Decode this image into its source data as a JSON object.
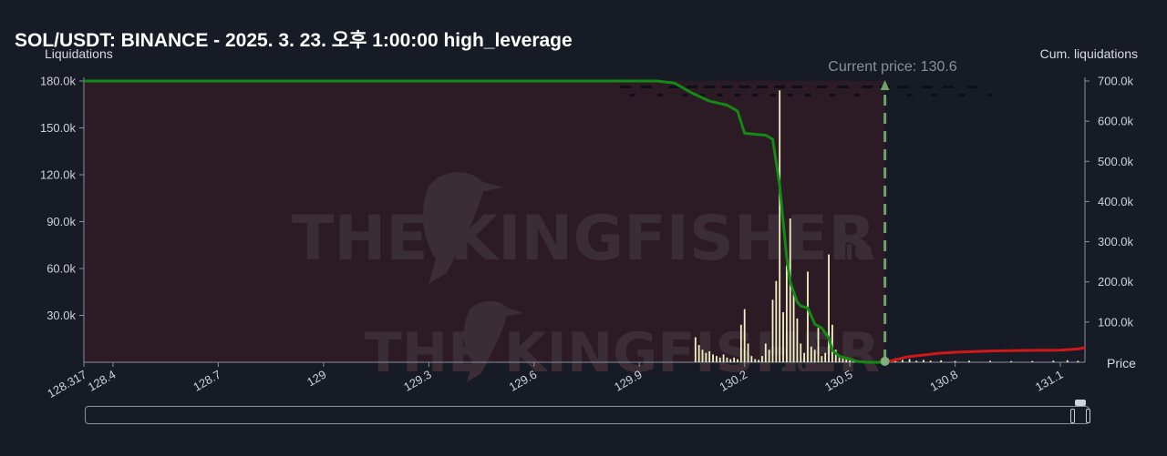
{
  "title": "SOL/USDT: BINANCE - 2025. 3. 23. 오후 1:00:00 high_leverage",
  "labels": {
    "left_axis": "Liquidations",
    "right_axis": "Cum. liquidations",
    "x_axis": "Price",
    "current_price": "Current price: 130.6"
  },
  "watermark": {
    "text_main": "THE KINGFISHER",
    "text_suffix": ".io"
  },
  "colors": {
    "background": "#171b26",
    "short_region": "#2c1a25",
    "cum_short_line": "#138a13",
    "cum_long_line": "#d01818",
    "bars": "#f2f0c4",
    "current_price_marker": "#6fa36a",
    "grid": "#8a8f99"
  },
  "chart_data": {
    "type": "bar",
    "title": "SOL/USDT: BINANCE - 2025. 3. 23. 오후 1:00:00 high_leverage",
    "xlabel": "Price",
    "ylabel": "Liquidations",
    "y2label": "Cum. liquidations",
    "xlim": [
      128.317,
      131.17
    ],
    "ylim": [
      0,
      180000
    ],
    "y2lim": [
      0,
      700000
    ],
    "x_ticks": [
      "128.317",
      "128.4",
      "128.7",
      "129",
      "129.3",
      "129.6",
      "129.9",
      "130.2",
      "130.5",
      "130.8",
      "131.1"
    ],
    "x_tick_values": [
      128.317,
      128.4,
      128.7,
      129.0,
      129.3,
      129.6,
      129.9,
      130.2,
      130.5,
      130.8,
      131.1
    ],
    "y_ticks": [
      "30.0k",
      "60.0k",
      "90.0k",
      "120.0k",
      "150.0k",
      "180.0k"
    ],
    "y_tick_values": [
      30000,
      60000,
      90000,
      120000,
      150000,
      180000
    ],
    "y2_ticks": [
      "100.0k",
      "200.0k",
      "300.0k",
      "400.0k",
      "500.0k",
      "600.0k",
      "700.0k"
    ],
    "y2_tick_values": [
      100000,
      200000,
      300000,
      400000,
      500000,
      600000,
      700000
    ],
    "current_price": 130.6,
    "bars": [
      {
        "x": 130.06,
        "y": 16000
      },
      {
        "x": 130.07,
        "y": 11000
      },
      {
        "x": 130.08,
        "y": 8000
      },
      {
        "x": 130.09,
        "y": 6000
      },
      {
        "x": 130.1,
        "y": 7000
      },
      {
        "x": 130.11,
        "y": 5000
      },
      {
        "x": 130.12,
        "y": 4000
      },
      {
        "x": 130.13,
        "y": 3000
      },
      {
        "x": 130.14,
        "y": 5000
      },
      {
        "x": 130.15,
        "y": 3000
      },
      {
        "x": 130.16,
        "y": 2000
      },
      {
        "x": 130.17,
        "y": 3000
      },
      {
        "x": 130.18,
        "y": 2000
      },
      {
        "x": 130.19,
        "y": 24000
      },
      {
        "x": 130.2,
        "y": 34000
      },
      {
        "x": 130.21,
        "y": 12000
      },
      {
        "x": 130.22,
        "y": 4000
      },
      {
        "x": 130.23,
        "y": 2000
      },
      {
        "x": 130.24,
        "y": 1500
      },
      {
        "x": 130.25,
        "y": 4000
      },
      {
        "x": 130.26,
        "y": 12000
      },
      {
        "x": 130.27,
        "y": 8000
      },
      {
        "x": 130.28,
        "y": 40000
      },
      {
        "x": 130.29,
        "y": 52000
      },
      {
        "x": 130.3,
        "y": 174000
      },
      {
        "x": 130.31,
        "y": 32000
      },
      {
        "x": 130.32,
        "y": 62000
      },
      {
        "x": 130.33,
        "y": 92000
      },
      {
        "x": 130.34,
        "y": 45000
      },
      {
        "x": 130.35,
        "y": 28000
      },
      {
        "x": 130.36,
        "y": 12000
      },
      {
        "x": 130.37,
        "y": 6000
      },
      {
        "x": 130.38,
        "y": 58000
      },
      {
        "x": 130.39,
        "y": 10000
      },
      {
        "x": 130.4,
        "y": 8000
      },
      {
        "x": 130.41,
        "y": 22000
      },
      {
        "x": 130.42,
        "y": 4000
      },
      {
        "x": 130.43,
        "y": 6000
      },
      {
        "x": 130.44,
        "y": 69000
      },
      {
        "x": 130.45,
        "y": 24000
      },
      {
        "x": 130.46,
        "y": 8000
      },
      {
        "x": 130.47,
        "y": 4000
      },
      {
        "x": 130.48,
        "y": 3000
      },
      {
        "x": 130.49,
        "y": 2500
      },
      {
        "x": 130.5,
        "y": 2000
      },
      {
        "x": 130.51,
        "y": 1500
      },
      {
        "x": 130.52,
        "y": 1000
      },
      {
        "x": 130.61,
        "y": 1500
      },
      {
        "x": 130.63,
        "y": 2500
      },
      {
        "x": 130.65,
        "y": 1500
      },
      {
        "x": 130.67,
        "y": 2000
      },
      {
        "x": 130.69,
        "y": 1000
      },
      {
        "x": 130.71,
        "y": 1500
      },
      {
        "x": 130.73,
        "y": 1000
      },
      {
        "x": 130.76,
        "y": 1200
      },
      {
        "x": 130.8,
        "y": 800
      },
      {
        "x": 130.84,
        "y": 1000
      },
      {
        "x": 130.9,
        "y": 900
      },
      {
        "x": 130.96,
        "y": 700
      },
      {
        "x": 131.02,
        "y": 800
      },
      {
        "x": 131.08,
        "y": 1000
      },
      {
        "x": 131.12,
        "y": 1300
      },
      {
        "x": 131.15,
        "y": 900
      }
    ],
    "series": [
      {
        "name": "",
        "axis": "right",
        "x": [
          128.317,
          129.95,
          130.0,
          130.05,
          130.1,
          130.15,
          130.18,
          130.2,
          130.26,
          130.28,
          130.3,
          130.31,
          130.32,
          130.33,
          130.35,
          130.36,
          130.38,
          130.4,
          130.42,
          130.44,
          130.45,
          130.47,
          130.5,
          130.52,
          130.55,
          130.6
        ],
        "y": [
          700000,
          700000,
          695000,
          670000,
          650000,
          640000,
          625000,
          570000,
          565000,
          555000,
          440000,
          350000,
          260000,
          200000,
          150000,
          140000,
          135000,
          95000,
          85000,
          60000,
          30000,
          15000,
          8000,
          2000,
          0,
          0
        ]
      },
      {
        "name": "",
        "axis": "right",
        "x": [
          130.6,
          130.63,
          130.66,
          130.7,
          130.75,
          130.8,
          130.9,
          131.0,
          131.1,
          131.15,
          131.17
        ],
        "y": [
          0,
          6000,
          13000,
          17000,
          22000,
          25000,
          28000,
          29500,
          30000,
          33000,
          36000
        ]
      }
    ],
    "orderbook_dashes": {
      "row1_y": 180000,
      "row2_y": 176000,
      "row1_x": [
        129.86,
        129.92,
        130.0,
        130.05,
        130.1,
        130.15,
        130.2,
        130.25,
        130.3,
        130.35,
        130.42,
        130.48,
        130.55,
        130.6,
        130.65,
        130.72,
        130.78,
        130.85
      ],
      "row2_x": [
        129.88,
        129.96,
        130.03,
        130.08,
        130.13,
        130.18,
        130.23,
        130.28,
        130.33,
        130.38,
        130.45,
        130.52,
        130.6,
        130.67,
        130.74,
        130.82,
        130.9
      ]
    }
  }
}
